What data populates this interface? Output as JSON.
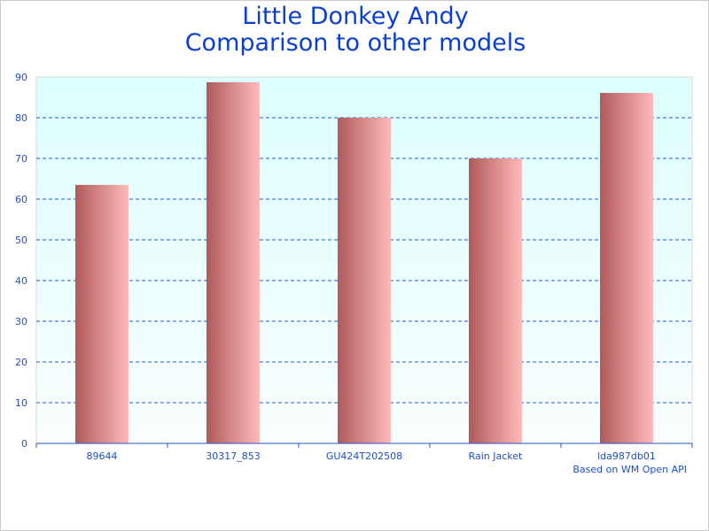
{
  "chart_data": {
    "type": "bar",
    "title": [
      "Little Donkey Andy",
      "Comparison to other models"
    ],
    "categories": [
      "89644",
      "30317_853",
      "GU424T202508",
      "Rain Jacket",
      "lda987db01"
    ],
    "values": [
      63.5,
      88.7,
      80,
      70,
      86.1
    ],
    "ylim": [
      0,
      90
    ],
    "yticks": [
      0,
      10,
      20,
      30,
      40,
      50,
      60,
      70,
      80,
      90
    ],
    "grid": true,
    "xlabel": "",
    "ylabel": "",
    "colors": {
      "bar_dark": "#b05a5a",
      "bar_light": "#ffbaba",
      "grid": "#2255cc",
      "text": "#1d4fc4",
      "plot_top": "#dcfefe",
      "plot_bottom": "#fafefe"
    }
  },
  "footnote": "Based on WM Open API"
}
